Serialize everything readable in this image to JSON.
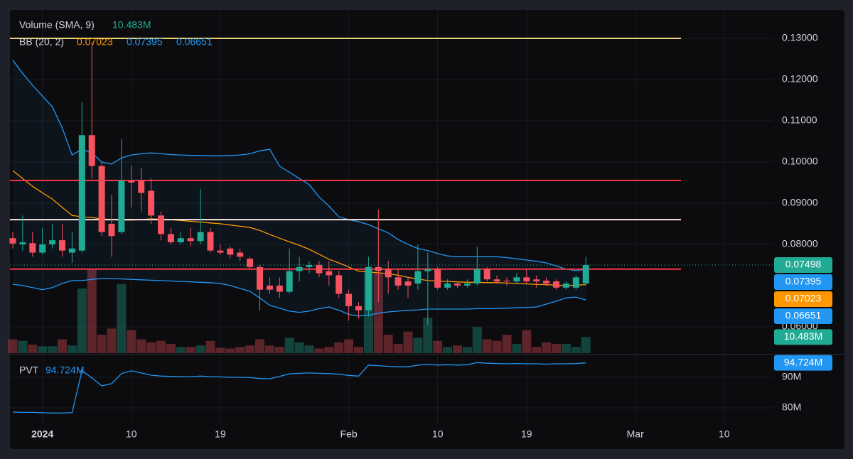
{
  "chart_data": {
    "type": "candlestick",
    "up_color": "#22ab94",
    "down_color": "#f7525f",
    "open": [
      0.0815,
      0.08,
      0.0803,
      0.078,
      0.08,
      0.081,
      0.078,
      0.0785,
      0.1065,
      0.099,
      0.085,
      0.083,
      0.0955,
      0.0955,
      0.093,
      0.087,
      0.0825,
      0.0805,
      0.0815,
      0.0808,
      0.083,
      0.0785,
      0.079,
      0.078,
      0.0765,
      0.0745,
      0.07,
      0.07,
      0.0685,
      0.0735,
      0.0745,
      0.075,
      0.0735,
      0.0725,
      0.068,
      0.065,
      0.064,
      0.0745,
      0.074,
      0.072,
      0.071,
      0.0705,
      0.0735,
      0.074,
      0.0695,
      0.0705,
      0.07,
      0.0705,
      0.074,
      0.0715,
      0.0712,
      0.071,
      0.072,
      0.0715,
      0.0712,
      0.071,
      0.0695,
      0.0695,
      0.0705
    ],
    "high": [
      0.083,
      0.087,
      0.083,
      0.084,
      0.085,
      0.085,
      0.083,
      0.1145,
      0.129,
      0.1,
      0.092,
      0.1055,
      0.099,
      0.0985,
      0.096,
      0.088,
      0.084,
      0.083,
      0.084,
      0.0935,
      0.084,
      0.08,
      0.0795,
      0.079,
      0.077,
      0.075,
      0.072,
      0.072,
      0.079,
      0.077,
      0.076,
      0.076,
      0.076,
      0.0735,
      0.069,
      0.066,
      0.077,
      0.0885,
      0.076,
      0.074,
      0.072,
      0.08,
      0.078,
      0.0745,
      0.0715,
      0.071,
      0.0715,
      0.0795,
      0.0745,
      0.0725,
      0.072,
      0.073,
      0.074,
      0.0725,
      0.072,
      0.0715,
      0.071,
      0.0725,
      0.077
    ],
    "low": [
      0.079,
      0.0785,
      0.077,
      0.0775,
      0.079,
      0.077,
      0.0755,
      0.078,
      0.096,
      0.082,
      0.077,
      0.0825,
      0.089,
      0.088,
      0.085,
      0.081,
      0.08,
      0.08,
      0.0795,
      0.08,
      0.078,
      0.0775,
      0.0765,
      0.076,
      0.074,
      0.064,
      0.068,
      0.067,
      0.068,
      0.071,
      0.073,
      0.072,
      0.07,
      0.067,
      0.0615,
      0.062,
      0.0625,
      0.066,
      0.068,
      0.069,
      0.067,
      0.069,
      0.0605,
      0.069,
      0.069,
      0.0695,
      0.0695,
      0.07,
      0.071,
      0.0705,
      0.07,
      0.0705,
      0.0705,
      0.0695,
      0.07,
      0.069,
      0.069,
      0.069,
      0.07
    ],
    "close": [
      0.0802,
      0.0805,
      0.078,
      0.08,
      0.081,
      0.0785,
      0.079,
      0.1065,
      0.099,
      0.083,
      0.082,
      0.0955,
      0.095,
      0.0925,
      0.087,
      0.0825,
      0.0805,
      0.0815,
      0.0808,
      0.083,
      0.0785,
      0.078,
      0.0775,
      0.077,
      0.0745,
      0.069,
      0.069,
      0.0685,
      0.0735,
      0.0745,
      0.075,
      0.073,
      0.0725,
      0.068,
      0.065,
      0.064,
      0.0745,
      0.0735,
      0.072,
      0.07,
      0.07,
      0.0735,
      0.074,
      0.0695,
      0.0705,
      0.07,
      0.0705,
      0.074,
      0.0715,
      0.071,
      0.071,
      0.072,
      0.071,
      0.071,
      0.0705,
      0.0695,
      0.0705,
      0.072,
      0.07498
    ],
    "ylim": [
      0.0536,
      0.1369
    ],
    "yticks": [
      {
        "value": 0.13,
        "label": "0.13000"
      },
      {
        "value": 0.12,
        "label": "0.12000"
      },
      {
        "value": 0.11,
        "label": "0.11000"
      },
      {
        "value": 0.1,
        "label": "0.10000"
      },
      {
        "value": 0.09,
        "label": "0.09000"
      },
      {
        "value": 0.08,
        "label": "0.08000"
      },
      {
        "value": 0.06,
        "label": "0.06000"
      }
    ],
    "xticks": [
      {
        "value": 3,
        "label": "2024"
      },
      {
        "value": 12,
        "label": "10"
      },
      {
        "value": 21,
        "label": "19"
      },
      {
        "value": 34,
        "label": "Feb"
      },
      {
        "value": 43,
        "label": "10"
      },
      {
        "value": 52,
        "label": "19"
      },
      {
        "value": 63,
        "label": "Mar"
      },
      {
        "value": 72,
        "label": "10"
      }
    ],
    "levels": [
      {
        "value": 0.13,
        "color": "#e8d27a"
      },
      {
        "value": 0.0955,
        "color": "#f23645"
      },
      {
        "value": 0.086,
        "color": "#ffe4e4"
      },
      {
        "value": 0.074,
        "color": "#f23645"
      }
    ],
    "volume": {
      "name": "Volume (SMA, 9)",
      "last_label": "10.483M",
      "values": [
        9,
        8,
        5.5,
        4.5,
        4.5,
        9,
        5,
        42,
        55,
        12,
        16,
        45,
        15,
        9,
        7,
        8,
        6,
        4,
        4,
        5,
        8,
        3.5,
        3,
        4,
        5,
        9,
        5,
        4,
        10,
        7,
        5,
        3,
        4,
        7,
        9,
        4,
        54,
        52,
        12,
        6,
        14,
        10,
        23,
        8,
        4,
        5,
        4,
        17,
        9,
        8,
        12,
        6,
        15,
        4,
        7,
        6,
        6,
        4,
        10.483
      ]
    },
    "bb": {
      "name": "BB (20, 2)",
      "basis_color": "#ff9800",
      "band_color": "#2196f3",
      "fill": "rgba(33,150,243,0.06)",
      "basis": [
        0.0979,
        0.096,
        0.0941,
        0.0925,
        0.091,
        0.089,
        0.087,
        0.0867,
        0.0865,
        0.0862,
        0.086,
        0.0859,
        0.0859,
        0.086,
        0.0862,
        0.0861,
        0.086,
        0.0858,
        0.0856,
        0.0854,
        0.0852,
        0.085,
        0.0847,
        0.0844,
        0.0841,
        0.0834,
        0.0824,
        0.0815,
        0.0806,
        0.0798,
        0.0788,
        0.0776,
        0.0764,
        0.0755,
        0.0745,
        0.0735,
        0.0733,
        0.0731,
        0.0729,
        0.0725,
        0.072,
        0.0716,
        0.0712,
        0.0711,
        0.071,
        0.0709,
        0.0708,
        0.0708,
        0.0707,
        0.0707,
        0.0706,
        0.0705,
        0.0704,
        0.0703,
        0.0702,
        0.0701,
        0.07,
        0.0701,
        0.07023
      ],
      "upper": [
        0.1247,
        0.1215,
        0.1186,
        0.116,
        0.1134,
        0.1083,
        0.1017,
        0.1031,
        0.1022,
        0.1,
        0.0995,
        0.101,
        0.1017,
        0.102,
        0.1022,
        0.102,
        0.1018,
        0.1017,
        0.1016,
        0.1016,
        0.1015,
        0.1015,
        0.1016,
        0.1017,
        0.102,
        0.1027,
        0.1031,
        0.099,
        0.0975,
        0.096,
        0.0945,
        0.0915,
        0.0893,
        0.0867,
        0.086,
        0.0855,
        0.0848,
        0.0838,
        0.0828,
        0.0812,
        0.08,
        0.079,
        0.0785,
        0.0778,
        0.0772,
        0.077,
        0.077,
        0.077,
        0.077,
        0.077,
        0.0768,
        0.0765,
        0.0762,
        0.0759,
        0.0755,
        0.0748,
        0.074,
        0.0736,
        0.07395
      ],
      "lower": [
        0.0703,
        0.07,
        0.0695,
        0.069,
        0.0695,
        0.0705,
        0.0712,
        0.0712,
        0.0715,
        0.0717,
        0.0717,
        0.0716,
        0.0715,
        0.0714,
        0.0713,
        0.0712,
        0.0711,
        0.071,
        0.0709,
        0.0708,
        0.0707,
        0.0705,
        0.07,
        0.0693,
        0.0686,
        0.067,
        0.0652,
        0.0645,
        0.0638,
        0.0635,
        0.0638,
        0.0644,
        0.0648,
        0.064,
        0.063,
        0.0626,
        0.0628,
        0.0633,
        0.0636,
        0.0638,
        0.064,
        0.0641,
        0.0643,
        0.0643,
        0.0643,
        0.0643,
        0.0643,
        0.0644,
        0.0644,
        0.0644,
        0.0645,
        0.0646,
        0.0647,
        0.0648,
        0.0655,
        0.0662,
        0.067,
        0.0672,
        0.06651
      ]
    },
    "pvt": {
      "name": "PVT",
      "color": "#2196f3",
      "last_label": "94.724M",
      "ylim": [
        74.65,
        97.2
      ],
      "yticks": [
        {
          "value": 90,
          "label": "90M"
        },
        {
          "value": 80,
          "label": "80M"
        }
      ],
      "values": [
        78.6,
        78.5,
        78.5,
        78.4,
        78.3,
        78.3,
        78.4,
        92.1,
        89.8,
        87.2,
        87.9,
        91.2,
        92.1,
        91.4,
        90.7,
        90.4,
        90.3,
        90.2,
        90.2,
        90.4,
        90.2,
        90.1,
        90.0,
        90.0,
        89.9,
        89.6,
        89.5,
        90.3,
        91.1,
        91.3,
        91.4,
        91.3,
        91.2,
        91.0,
        90.6,
        90.4,
        94.0,
        93.8,
        93.6,
        93.4,
        93.4,
        94.0,
        94.2,
        94.0,
        94.1,
        94.0,
        94.1,
        94.8,
        94.6,
        94.5,
        94.4,
        94.5,
        94.4,
        94.4,
        94.3,
        94.4,
        94.4,
        94.5,
        94.724
      ]
    }
  }
}
